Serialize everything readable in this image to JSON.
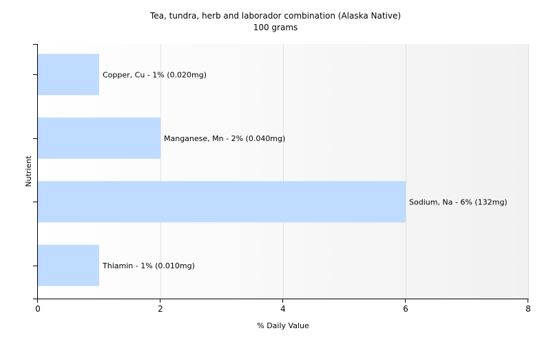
{
  "chart_data": {
    "type": "bar",
    "orientation": "horizontal",
    "title": "Tea, tundra, herb and laborador combination (Alaska Native)",
    "subtitle": "100 grams",
    "xlabel": "% Daily Value",
    "ylabel": "Nutrient",
    "xlim": [
      0,
      8
    ],
    "xticks": [
      0,
      2,
      4,
      6,
      8
    ],
    "grid": "vertical",
    "legend": "none",
    "bar_color": "#bfdbff",
    "categories": [
      "Copper, Cu",
      "Manganese, Mn",
      "Sodium, Na",
      "Thiamin"
    ],
    "values": [
      1,
      2,
      6,
      1
    ],
    "data_labels": [
      "Copper, Cu - 1% (0.020mg)",
      "Manganese, Mn - 2% (0.040mg)",
      "Sodium, Na - 6% (132mg)",
      "Thiamin - 1% (0.010mg)"
    ]
  }
}
